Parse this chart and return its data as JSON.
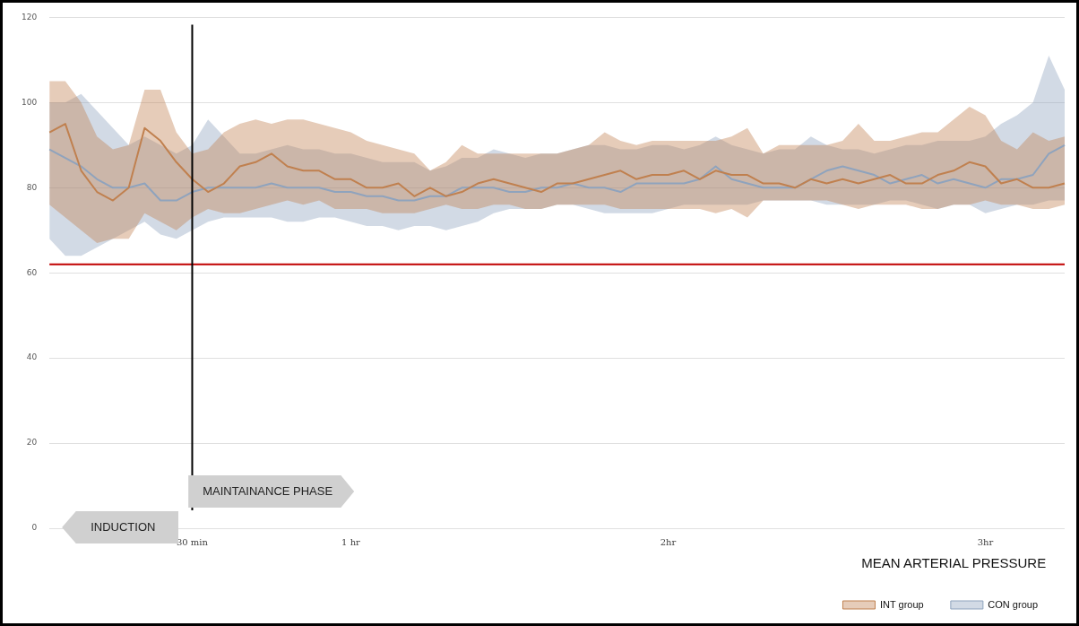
{
  "chart_data": {
    "type": "line",
    "legend_title": "MEAN ARTERIAL PRESSURE",
    "categories": [
      null,
      null,
      null,
      null,
      null,
      null,
      null,
      null,
      null,
      "30 min",
      null,
      null,
      null,
      null,
      null,
      null,
      null,
      null,
      null,
      "1 hr",
      null,
      null,
      null,
      null,
      null,
      null,
      null,
      null,
      null,
      null,
      null,
      null,
      null,
      null,
      null,
      null,
      null,
      null,
      null,
      "2hr",
      null,
      null,
      null,
      null,
      null,
      null,
      null,
      null,
      null,
      null,
      null,
      null,
      null,
      null,
      null,
      null,
      null,
      null,
      null,
      "3hr",
      null,
      null,
      null,
      null,
      null
    ],
    "series": [
      {
        "name": "INT group",
        "color": "#c0804f",
        "values": [
          93,
          95,
          84,
          79,
          77,
          80,
          94,
          91,
          86,
          82,
          79,
          81,
          85,
          86,
          88,
          85,
          84,
          84,
          82,
          82,
          80,
          80,
          81,
          78,
          80,
          78,
          79,
          81,
          82,
          81,
          80,
          79,
          81,
          81,
          82,
          83,
          84,
          82,
          83,
          83,
          84,
          82,
          84,
          83,
          83,
          81,
          81,
          80,
          82,
          81,
          82,
          81,
          82,
          83,
          81,
          81,
          83,
          84,
          86,
          85,
          81,
          82,
          80,
          80,
          81
        ],
        "upper": [
          105,
          105,
          100,
          92,
          89,
          90,
          103,
          103,
          93,
          88,
          89,
          93,
          95,
          96,
          95,
          96,
          96,
          95,
          94,
          93,
          91,
          90,
          89,
          88,
          84,
          86,
          90,
          88,
          88,
          88,
          88,
          88,
          88,
          89,
          90,
          93,
          91,
          90,
          91,
          91,
          91,
          91,
          91,
          92,
          94,
          88,
          90,
          90,
          90,
          90,
          91,
          95,
          91,
          91,
          92,
          93,
          93,
          96,
          99,
          97,
          91,
          89,
          93,
          91,
          92
        ],
        "lower": [
          76,
          73,
          70,
          67,
          68,
          68,
          74,
          72,
          70,
          73,
          75,
          74,
          74,
          75,
          76,
          77,
          76,
          77,
          75,
          75,
          75,
          74,
          74,
          74,
          75,
          76,
          75,
          75,
          76,
          76,
          75,
          75,
          76,
          76,
          76,
          76,
          75,
          75,
          75,
          75,
          75,
          75,
          74,
          75,
          73,
          77,
          77,
          77,
          77,
          77,
          76,
          75,
          76,
          76,
          76,
          75,
          75,
          76,
          76,
          77,
          76,
          76,
          75,
          75,
          76
        ]
      },
      {
        "name": "CON group",
        "color": "#8fa3bd",
        "values": [
          89,
          87,
          85,
          82,
          80,
          80,
          81,
          77,
          77,
          79,
          80,
          80,
          80,
          80,
          81,
          80,
          80,
          80,
          79,
          79,
          78,
          78,
          77,
          77,
          78,
          78,
          80,
          80,
          80,
          79,
          79,
          80,
          80,
          81,
          80,
          80,
          79,
          81,
          81,
          81,
          81,
          82,
          85,
          82,
          81,
          80,
          80,
          80,
          82,
          84,
          85,
          84,
          83,
          81,
          82,
          83,
          81,
          82,
          81,
          80,
          82,
          82,
          83,
          88,
          90
        ],
        "upper": [
          100,
          100,
          102,
          98,
          94,
          90,
          92,
          90,
          88,
          90,
          96,
          92,
          88,
          88,
          89,
          90,
          89,
          89,
          88,
          88,
          87,
          86,
          86,
          86,
          84,
          85,
          87,
          87,
          89,
          88,
          87,
          88,
          88,
          89,
          90,
          90,
          89,
          89,
          90,
          90,
          89,
          90,
          92,
          90,
          89,
          88,
          89,
          89,
          92,
          90,
          89,
          89,
          88,
          89,
          90,
          90,
          91,
          91,
          91,
          92,
          95,
          97,
          100,
          111,
          103
        ],
        "lower": [
          68,
          64,
          64,
          66,
          68,
          70,
          72,
          69,
          68,
          70,
          72,
          73,
          73,
          73,
          73,
          72,
          72,
          73,
          73,
          72,
          71,
          71,
          70,
          71,
          71,
          70,
          71,
          72,
          74,
          75,
          75,
          75,
          76,
          76,
          75,
          74,
          74,
          74,
          74,
          75,
          76,
          76,
          76,
          76,
          76,
          77,
          77,
          77,
          77,
          76,
          76,
          76,
          76,
          77,
          77,
          76,
          75,
          76,
          76,
          74,
          75,
          76,
          76,
          77,
          77
        ]
      }
    ],
    "ylim": [
      0,
      120
    ],
    "yticks": [
      0,
      20,
      40,
      60,
      80,
      100,
      120
    ],
    "ref_lines": [
      {
        "axis": "y",
        "value": 62,
        "color": "#c00000"
      },
      {
        "axis": "x",
        "value": "30 min",
        "color": "#000000"
      }
    ],
    "annotations": [
      "MAINTAINANCE PHASE",
      "INDUCTION"
    ],
    "grid": "y",
    "legend": "bottom right",
    "marker": "none",
    "line_style": "solid"
  }
}
